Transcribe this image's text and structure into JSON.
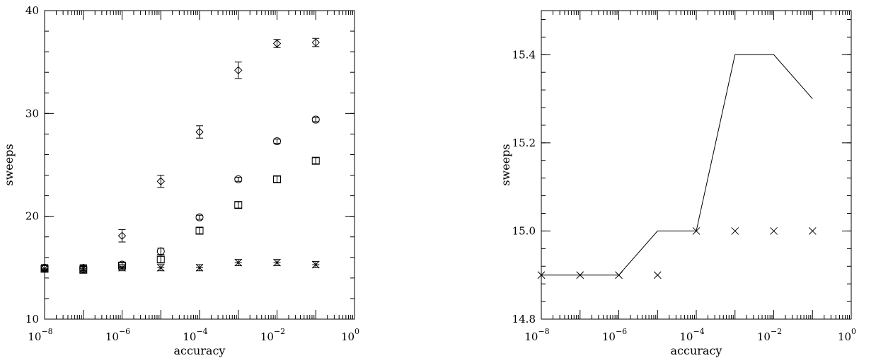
{
  "chart_data": [
    {
      "type": "scatter",
      "title": "",
      "xlabel": "accuracy",
      "ylabel": "sweeps",
      "xscale": "log",
      "xlim": [
        1e-08,
        1
      ],
      "ylim": [
        10,
        40
      ],
      "x_tick_labels": [
        {
          "base": "10",
          "exp": "−8"
        },
        {
          "base": "10",
          "exp": "−6"
        },
        {
          "base": "10",
          "exp": "−4"
        },
        {
          "base": "10",
          "exp": "−2"
        },
        {
          "base": "10",
          "exp": "0"
        }
      ],
      "y_ticks": [
        10,
        20,
        30,
        40
      ],
      "grid": false,
      "series": [
        {
          "marker": "diamond",
          "x": [
            1e-08,
            1e-07,
            1e-06,
            1e-05,
            0.0001,
            0.001,
            0.01,
            0.1
          ],
          "y": [
            15.0,
            15.0,
            18.1,
            23.4,
            28.2,
            34.2,
            36.8,
            36.9
          ],
          "err": [
            0.3,
            0.3,
            0.6,
            0.6,
            0.6,
            0.8,
            0.4,
            0.4
          ]
        },
        {
          "marker": "circle",
          "x": [
            1e-08,
            1e-07,
            1e-06,
            1e-05,
            0.0001,
            0.001,
            0.01,
            0.1
          ],
          "y": [
            15.0,
            14.9,
            15.3,
            16.6,
            19.9,
            23.6,
            27.3,
            29.4
          ],
          "err": [
            0.2,
            0.2,
            0.2,
            0.3,
            0.2,
            0.2,
            0.2,
            0.2
          ]
        },
        {
          "marker": "square",
          "x": [
            1e-08,
            1e-07,
            1e-06,
            1e-05,
            0.0001,
            0.001,
            0.01,
            0.1
          ],
          "y": [
            14.9,
            14.8,
            15.2,
            15.8,
            18.6,
            21.1,
            23.6,
            25.4
          ],
          "err": [
            0.3,
            0.3,
            0.3,
            0.3,
            0.3,
            0.3,
            0.3,
            0.3
          ]
        },
        {
          "marker": "asterisk",
          "x": [
            1e-08,
            1e-07,
            1e-06,
            1e-05,
            0.0001,
            0.001,
            0.01,
            0.1
          ],
          "y": [
            14.9,
            14.9,
            15.0,
            15.0,
            15.0,
            15.5,
            15.5,
            15.3
          ],
          "err": [
            0.3,
            0.3,
            0.3,
            0.3,
            0.3,
            0.3,
            0.3,
            0.3
          ]
        }
      ]
    },
    {
      "type": "line",
      "title": "",
      "xlabel": "accuracy",
      "ylabel": "sweeps",
      "xscale": "log",
      "xlim": [
        1e-08,
        1
      ],
      "ylim": [
        14.8,
        15.5
      ],
      "x_tick_labels": [
        {
          "base": "10",
          "exp": "−8"
        },
        {
          "base": "10",
          "exp": "−6"
        },
        {
          "base": "10",
          "exp": "−4"
        },
        {
          "base": "10",
          "exp": "−2"
        },
        {
          "base": "10",
          "exp": "0"
        }
      ],
      "y_ticks": [
        "14.8",
        "15.0",
        "15.2",
        "15.4"
      ],
      "grid": false,
      "series": [
        {
          "style": "line",
          "x": [
            1e-08,
            1e-07,
            1e-06,
            1e-05,
            0.0001,
            0.001,
            0.01,
            0.1
          ],
          "y": [
            14.9,
            14.9,
            14.9,
            15.0,
            15.0,
            15.4,
            15.4,
            15.3
          ]
        },
        {
          "style": "x-marker",
          "x": [
            1e-08,
            1e-07,
            1e-06,
            1e-05,
            0.0001,
            0.001,
            0.01,
            0.1
          ],
          "y": [
            14.9,
            14.9,
            14.9,
            14.9,
            15.0,
            15.0,
            15.0,
            15.0
          ]
        }
      ]
    }
  ]
}
